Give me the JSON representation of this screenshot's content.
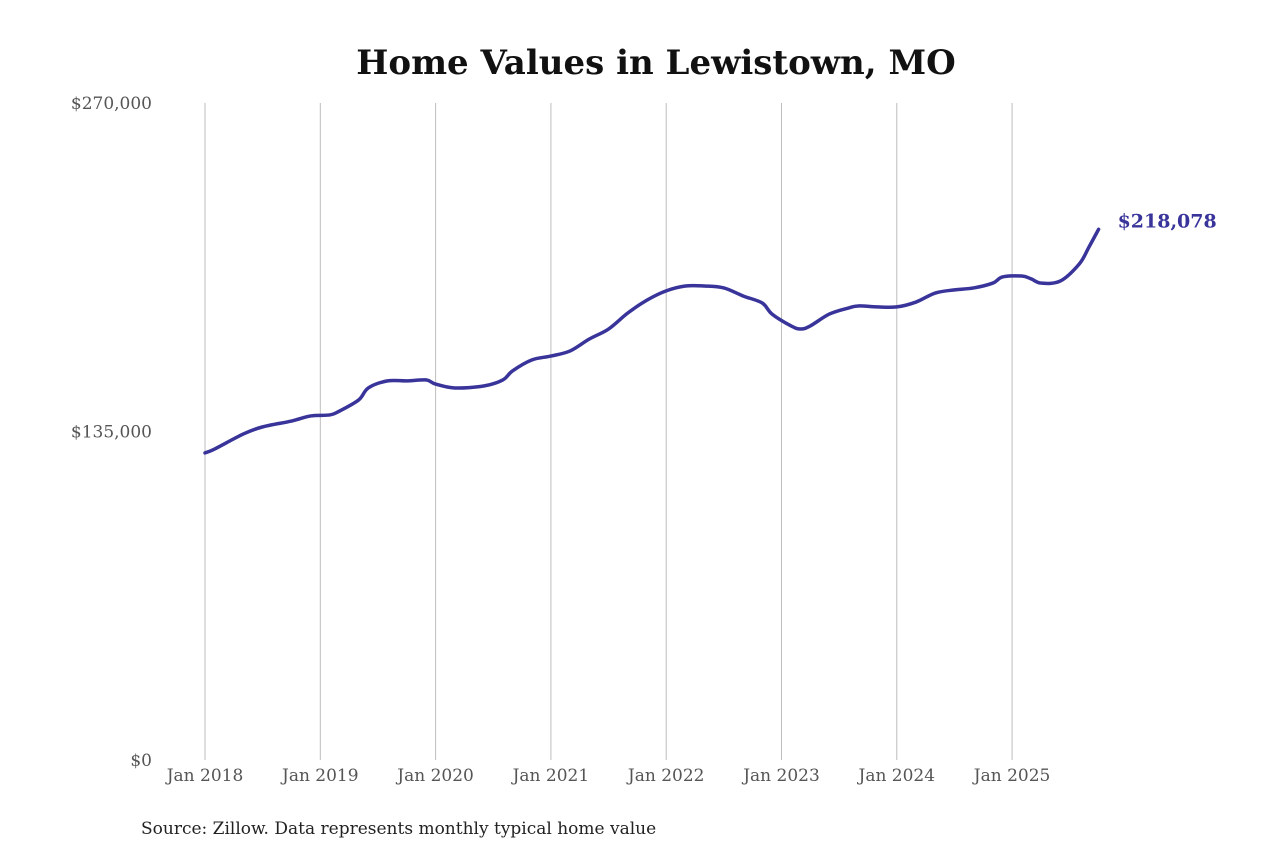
{
  "chart_data": {
    "type": "line",
    "title": "Home Values in Lewistown, MO",
    "source": "Source: Zillow. Data represents monthly typical home value",
    "xlabel": "",
    "ylabel": "",
    "ylim": [
      0,
      270000
    ],
    "y_ticks": [
      0,
      135000,
      270000
    ],
    "y_tick_labels": [
      "$0",
      "$135,000",
      "$270,000"
    ],
    "x_ticks": [
      "2018-01",
      "2019-01",
      "2020-01",
      "2021-01",
      "2022-01",
      "2023-01",
      "2024-01",
      "2025-01"
    ],
    "x_tick_labels": [
      "Jan 2018",
      "Jan 2019",
      "Jan 2020",
      "Jan 2021",
      "Jan 2022",
      "Jan 2023",
      "Jan 2024",
      "Jan 2025"
    ],
    "grid": "vertical",
    "line_color": "#39349a",
    "end_label": "$218,078",
    "series": [
      {
        "x": [
          "2018-01",
          "2018-02",
          "2018-05",
          "2018-07",
          "2018-10",
          "2018-12",
          "2019-02",
          "2019-03",
          "2019-05",
          "2019-06",
          "2019-08",
          "2019-10",
          "2019-12",
          "2020-01",
          "2020-03",
          "2020-06",
          "2020-08",
          "2020-09",
          "2020-11",
          "2021-01",
          "2021-03",
          "2021-05",
          "2021-07",
          "2021-09",
          "2021-11",
          "2022-01",
          "2022-03",
          "2022-05",
          "2022-07",
          "2022-09",
          "2022-11",
          "2022-12",
          "2023-02",
          "2023-03",
          "2023-04",
          "2023-06",
          "2023-08",
          "2023-09",
          "2023-11",
          "2024-01",
          "2024-03",
          "2024-05",
          "2024-07",
          "2024-09",
          "2024-11",
          "2024-12",
          "2025-02",
          "2025-03",
          "2025-04",
          "2025-06",
          "2025-08",
          "2025-09",
          "2025-10"
        ],
        "values": [
          126200,
          127800,
          134000,
          136900,
          139300,
          141400,
          141800,
          143400,
          148000,
          152900,
          155800,
          155800,
          156200,
          154500,
          152900,
          153700,
          156200,
          159900,
          164400,
          166000,
          168100,
          173000,
          177100,
          183700,
          189000,
          192800,
          194800,
          194800,
          194000,
          190700,
          187800,
          183300,
          178400,
          177100,
          178400,
          183300,
          185800,
          186600,
          186200,
          186200,
          188200,
          191900,
          193200,
          194000,
          196000,
          198500,
          198900,
          197700,
          196000,
          196800,
          203900,
          210800,
          218078
        ]
      }
    ]
  }
}
